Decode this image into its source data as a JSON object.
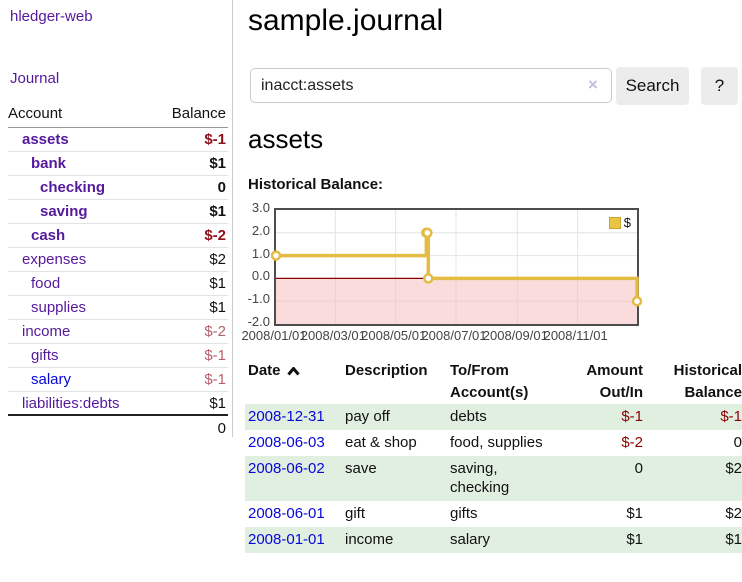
{
  "sidebar": {
    "app_title": "hledger-web",
    "journal_label": "Journal",
    "accounts_table": {
      "headers": {
        "account": "Account",
        "balance": "Balance"
      },
      "rows": [
        {
          "name": "assets",
          "level": 1,
          "bold": true,
          "link": "purple",
          "balance": "$-1",
          "balance_class": "neg-strong"
        },
        {
          "name": "bank",
          "level": 2,
          "bold": true,
          "link": "purple",
          "balance": "$1",
          "balance_class": ""
        },
        {
          "name": "checking",
          "level": 3,
          "bold": true,
          "link": "purple",
          "balance": "0",
          "balance_class": ""
        },
        {
          "name": "saving",
          "level": 3,
          "bold": true,
          "link": "purple",
          "balance": "$1",
          "balance_class": ""
        },
        {
          "name": "cash",
          "level": 2,
          "bold": true,
          "link": "purple",
          "balance": "$-2",
          "balance_class": "neg-strong"
        },
        {
          "name": "expenses",
          "level": 1,
          "bold": false,
          "link": "purple",
          "balance": "$2",
          "balance_class": ""
        },
        {
          "name": "food",
          "level": 2,
          "bold": false,
          "link": "purple",
          "balance": "$1",
          "balance_class": ""
        },
        {
          "name": "supplies",
          "level": 2,
          "bold": false,
          "link": "purple",
          "balance": "$1",
          "balance_class": ""
        },
        {
          "name": "income",
          "level": 1,
          "bold": false,
          "link": "purple",
          "balance": "$-2",
          "balance_class": "neg-soft"
        },
        {
          "name": "gifts",
          "level": 2,
          "bold": false,
          "link": "purple",
          "balance": "$-1",
          "balance_class": "neg-soft"
        },
        {
          "name": "salary",
          "level": 2,
          "bold": false,
          "link": "blue",
          "balance": "$-1",
          "balance_class": "neg-soft"
        },
        {
          "name": "liabilities:debts",
          "level": 1,
          "bold": false,
          "link": "purple",
          "balance": "$1",
          "balance_class": ""
        }
      ],
      "total": "0"
    }
  },
  "main": {
    "title": "sample.journal",
    "search": {
      "value": "inacct:assets",
      "clear_icon": "×",
      "button_label": "Search",
      "help_label": "?"
    },
    "account_heading": "assets",
    "chart_heading": "Historical Balance:"
  },
  "chart_data": {
    "type": "line",
    "title": "Historical Balance",
    "step": true,
    "ylim": [
      -2,
      3
    ],
    "x_range": [
      "2008-01-01",
      "2008-12-31"
    ],
    "series": [
      {
        "name": "$",
        "color": "#e3bc45",
        "points": [
          [
            "2008-01-01",
            1
          ],
          [
            "2008-06-01",
            2
          ],
          [
            "2008-06-02",
            2
          ],
          [
            "2008-06-03",
            0
          ],
          [
            "2008-12-31",
            -1
          ]
        ]
      }
    ],
    "y_ticks": [
      {
        "value": 3,
        "label": "3.0"
      },
      {
        "value": 2,
        "label": "2.0"
      },
      {
        "value": 1,
        "label": "1.0"
      },
      {
        "value": 0,
        "label": "0.0"
      },
      {
        "value": -1,
        "label": "-1.0"
      },
      {
        "value": -2,
        "label": "-2.0"
      }
    ],
    "x_ticks": [
      {
        "date": "2008-01-01",
        "label": "2008/01/01"
      },
      {
        "date": "2008-03-01",
        "label": "2008/03/01"
      },
      {
        "date": "2008-05-01",
        "label": "2008/05/01"
      },
      {
        "date": "2008-07-01",
        "label": "2008/07/01"
      },
      {
        "date": "2008-09-01",
        "label": "2008/09/01"
      },
      {
        "date": "2008-11-01",
        "label": "2008/11/01"
      }
    ],
    "grid": true,
    "legend": {
      "position": "top-right",
      "label": "$"
    },
    "negative_region_color": "#f6b9b9",
    "zero_line_color": "#8b0000",
    "grid_color": "#e4e4e4"
  },
  "register": {
    "headers": [
      {
        "line1": "Date",
        "line2": "",
        "align": "left",
        "sortable": true
      },
      {
        "line1": "Description",
        "line2": "",
        "align": "left"
      },
      {
        "line1": "To/From",
        "line2": "Account(s)",
        "align": "left"
      },
      {
        "line1": "Amount",
        "line2": "Out/In",
        "align": "right"
      },
      {
        "line1": "Historical",
        "line2": "Balance",
        "align": "right"
      }
    ],
    "rows": [
      {
        "date": "2008-12-31",
        "description": "pay off",
        "accounts": [
          "debts"
        ],
        "amount": "$-1",
        "amount_neg": true,
        "balance": "$-1",
        "balance_neg": true,
        "shaded": true
      },
      {
        "date": "2008-06-03",
        "description": "eat & shop",
        "accounts": [
          "food, supplies"
        ],
        "amount": "$-2",
        "amount_neg": true,
        "balance": "0",
        "balance_neg": false,
        "shaded": false
      },
      {
        "date": "2008-06-02",
        "description": "save",
        "accounts": [
          "saving,",
          "checking"
        ],
        "amount": "0",
        "amount_neg": false,
        "balance": "$2",
        "balance_neg": false,
        "shaded": true
      },
      {
        "date": "2008-06-01",
        "description": "gift",
        "accounts": [
          "gifts"
        ],
        "amount": "$1",
        "amount_neg": false,
        "balance": "$2",
        "balance_neg": false,
        "shaded": false
      },
      {
        "date": "2008-01-01",
        "description": "income",
        "accounts": [
          "salary"
        ],
        "amount": "$1",
        "amount_neg": false,
        "balance": "$1",
        "balance_neg": false,
        "shaded": true
      }
    ]
  },
  "colors": {
    "link_purple": "#551a9b",
    "link_blue": "#0707d6",
    "negative_strong": "#8f0f1a",
    "negative_soft": "#b5616e",
    "row_green": "#e1efe1",
    "chart_gold": "#e3bc45",
    "chart_pink": "#f6b9b9",
    "zero_line": "#8b0000"
  }
}
